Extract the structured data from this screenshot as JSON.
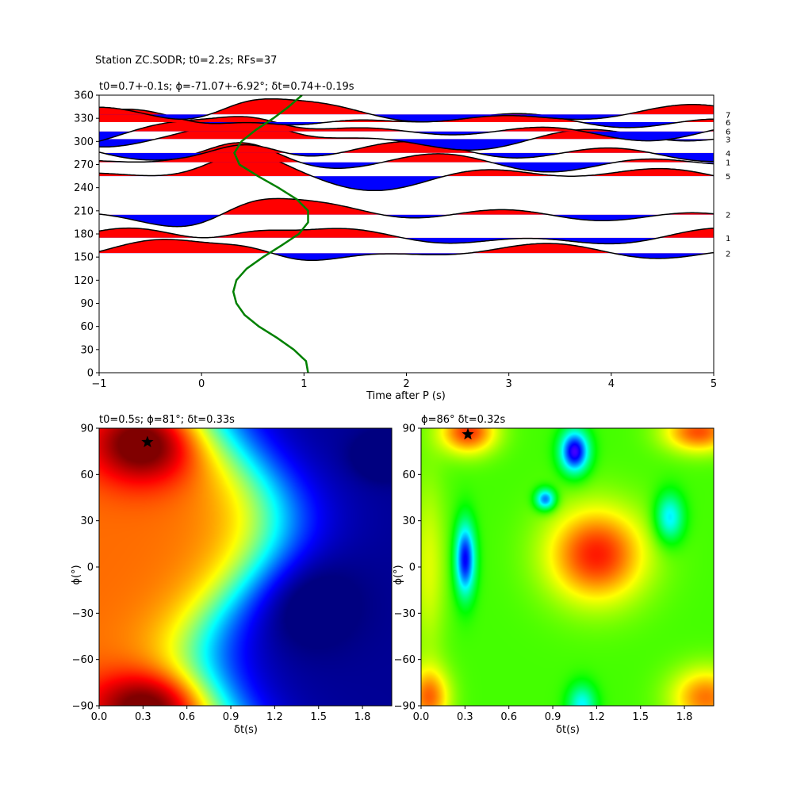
{
  "figure_title": "Station ZC.SODR; t0=2.2s; RFs=37",
  "chart_data": [
    {
      "type": "line",
      "title": "t0=0.7+-0.1s; ϕ=-71.07+-6.92°; δt=0.74+-0.19s",
      "xlabel": "Time after P (s)",
      "ylabel": "",
      "xlim": [
        -1,
        5
      ],
      "ylim": [
        0,
        360
      ],
      "x_ticks": [
        "−1",
        "0",
        "1",
        "2",
        "3",
        "4",
        "5"
      ],
      "y_ticks": [
        "0",
        "30",
        "60",
        "90",
        "120",
        "150",
        "180",
        "210",
        "240",
        "270",
        "300",
        "330",
        "360"
      ],
      "grid": false,
      "positive_fill_color": "#ff0000",
      "negative_fill_color": "#0000ff",
      "trace_color": "#000000",
      "fit_curve_color": "#008000",
      "traces": [
        {
          "baz": 155,
          "count": "2"
        },
        {
          "baz": 175,
          "count": "1"
        },
        {
          "baz": 205,
          "count": "2"
        },
        {
          "baz": 255,
          "count": "5"
        },
        {
          "baz": 273,
          "count": "1"
        },
        {
          "baz": 285,
          "count": "4"
        },
        {
          "baz": 303,
          "count": "3"
        },
        {
          "baz": 313,
          "count": "6"
        },
        {
          "baz": 325,
          "count": "6"
        },
        {
          "baz": 335,
          "count": "7"
        }
      ],
      "fit_curve": {
        "t_center": 0.7,
        "amplitude": 0.35,
        "phi": -71.07,
        "baz": [
          0,
          15,
          30,
          45,
          60,
          75,
          90,
          105,
          120,
          135,
          150,
          165,
          180,
          195,
          210,
          225,
          240,
          255,
          270,
          285,
          300,
          315,
          330,
          345,
          360
        ],
        "t": [
          1.04,
          1.02,
          0.9,
          0.74,
          0.56,
          0.42,
          0.34,
          0.31,
          0.34,
          0.44,
          0.6,
          0.78,
          0.95,
          1.04,
          1.04,
          0.93,
          0.75,
          0.55,
          0.37,
          0.32,
          0.39,
          0.53,
          0.7,
          0.85,
          0.98
        ]
      }
    },
    {
      "type": "heatmap",
      "title": "t0=0.5s; ϕ=81°; δt=0.33s",
      "xlabel": "δt(s)",
      "ylabel": "ϕ(°)",
      "xlim": [
        0,
        2
      ],
      "ylim": [
        -90,
        90
      ],
      "x_ticks": [
        "0.0",
        "0.3",
        "0.6",
        "0.9",
        "1.2",
        "1.5",
        "1.8"
      ],
      "y_ticks": [
        "−90",
        "−60",
        "−30",
        "0",
        "30",
        "60",
        "90"
      ],
      "colormap": "jet",
      "best": {
        "dt": 0.33,
        "phi": 81
      },
      "marker": "star"
    },
    {
      "type": "heatmap",
      "title": "ϕ=86° δt=0.32s",
      "xlabel": "δt(s)",
      "ylabel": "ϕ(°)",
      "xlim": [
        0,
        2
      ],
      "ylim": [
        -90,
        90
      ],
      "x_ticks": [
        "0.0",
        "0.3",
        "0.6",
        "0.9",
        "1.2",
        "1.5",
        "1.8"
      ],
      "y_ticks": [
        "−90",
        "−60",
        "−30",
        "0",
        "30",
        "60",
        "90"
      ],
      "colormap": "hsv",
      "best": {
        "dt": 0.32,
        "phi": 86
      },
      "marker": "star"
    }
  ]
}
